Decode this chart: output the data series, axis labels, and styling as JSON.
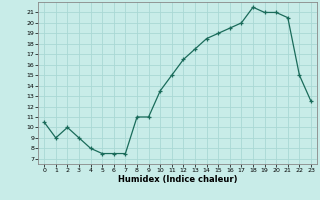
{
  "x": [
    0,
    1,
    2,
    3,
    4,
    5,
    6,
    7,
    8,
    9,
    10,
    11,
    12,
    13,
    14,
    15,
    16,
    17,
    18,
    19,
    20,
    21,
    22,
    23
  ],
  "y": [
    10.5,
    9.0,
    10.0,
    9.0,
    8.0,
    7.5,
    7.5,
    7.5,
    11.0,
    11.0,
    13.5,
    15.0,
    16.5,
    17.5,
    18.5,
    19.0,
    19.5,
    20.0,
    21.5,
    21.0,
    21.0,
    20.5,
    15.0,
    12.5
  ],
  "xlabel": "Humidex (Indice chaleur)",
  "xlim": [
    -0.5,
    23.5
  ],
  "ylim": [
    6.5,
    22.0
  ],
  "yticks": [
    7,
    8,
    9,
    10,
    11,
    12,
    13,
    14,
    15,
    16,
    17,
    18,
    19,
    20,
    21
  ],
  "xticks": [
    0,
    1,
    2,
    3,
    4,
    5,
    6,
    7,
    8,
    9,
    10,
    11,
    12,
    13,
    14,
    15,
    16,
    17,
    18,
    19,
    20,
    21,
    22,
    23
  ],
  "line_color": "#1a6b5a",
  "marker": "+",
  "bg_color": "#c8ece8",
  "grid_color": "#aad8d4",
  "spine_color": "#888888"
}
